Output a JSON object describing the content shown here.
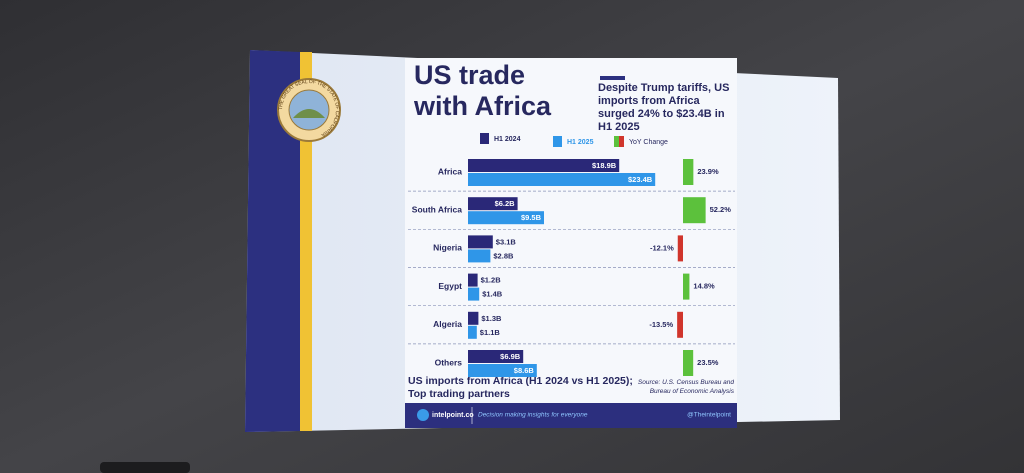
{
  "chart_data": {
    "type": "bar",
    "title": "US trade with Africa",
    "subtitle": "Despite Trump tariffs, US imports from Africa surged 24% to $23.4B in H1 2025",
    "caption": "US imports from Africa (H1 2024 vs H1 2025); Top trading partners",
    "source": "Source: U.S. Census Bureau and Bureau of Economic Analysis",
    "seal_text": "THE GREAT SEAL OF THE STATE OF CALIFORNIA",
    "footer": {
      "site": "intelpoint.co",
      "tagline": "Decision making insights for everyone",
      "handle": "@Theintelpoint"
    },
    "categories": [
      "Africa",
      "South Africa",
      "Nigeria",
      "Egypt",
      "Algeria",
      "Others"
    ],
    "series": [
      {
        "name": "H1 2024",
        "color": "#2a2878",
        "values": [
          18.9,
          6.2,
          3.1,
          1.2,
          1.3,
          6.9
        ],
        "value_labels": [
          "$18.9B",
          "$6.2B",
          "$3.1B",
          "$1.2B",
          "$1.3B",
          "$6.9B"
        ]
      },
      {
        "name": "H1 2025",
        "color": "#2f96e8",
        "values": [
          23.4,
          9.5,
          2.8,
          1.4,
          1.1,
          8.6
        ],
        "value_labels": [
          "$23.4B",
          "$9.5B",
          "$2.8B",
          "$1.4B",
          "$1.1B",
          "$8.6B"
        ]
      }
    ],
    "change": {
      "name": "YoY Change",
      "positive_color": "#5cc13c",
      "negative_color": "#d0352c",
      "values": [
        23.9,
        52.2,
        -12.1,
        14.8,
        -13.5,
        23.5
      ],
      "value_labels": [
        "23.9%",
        "52.2%",
        "-12.1%",
        "14.8%",
        "-13.5%",
        "23.5%"
      ]
    },
    "xlim": [
      0,
      25
    ],
    "x2lim": [
      -60,
      60
    ]
  }
}
